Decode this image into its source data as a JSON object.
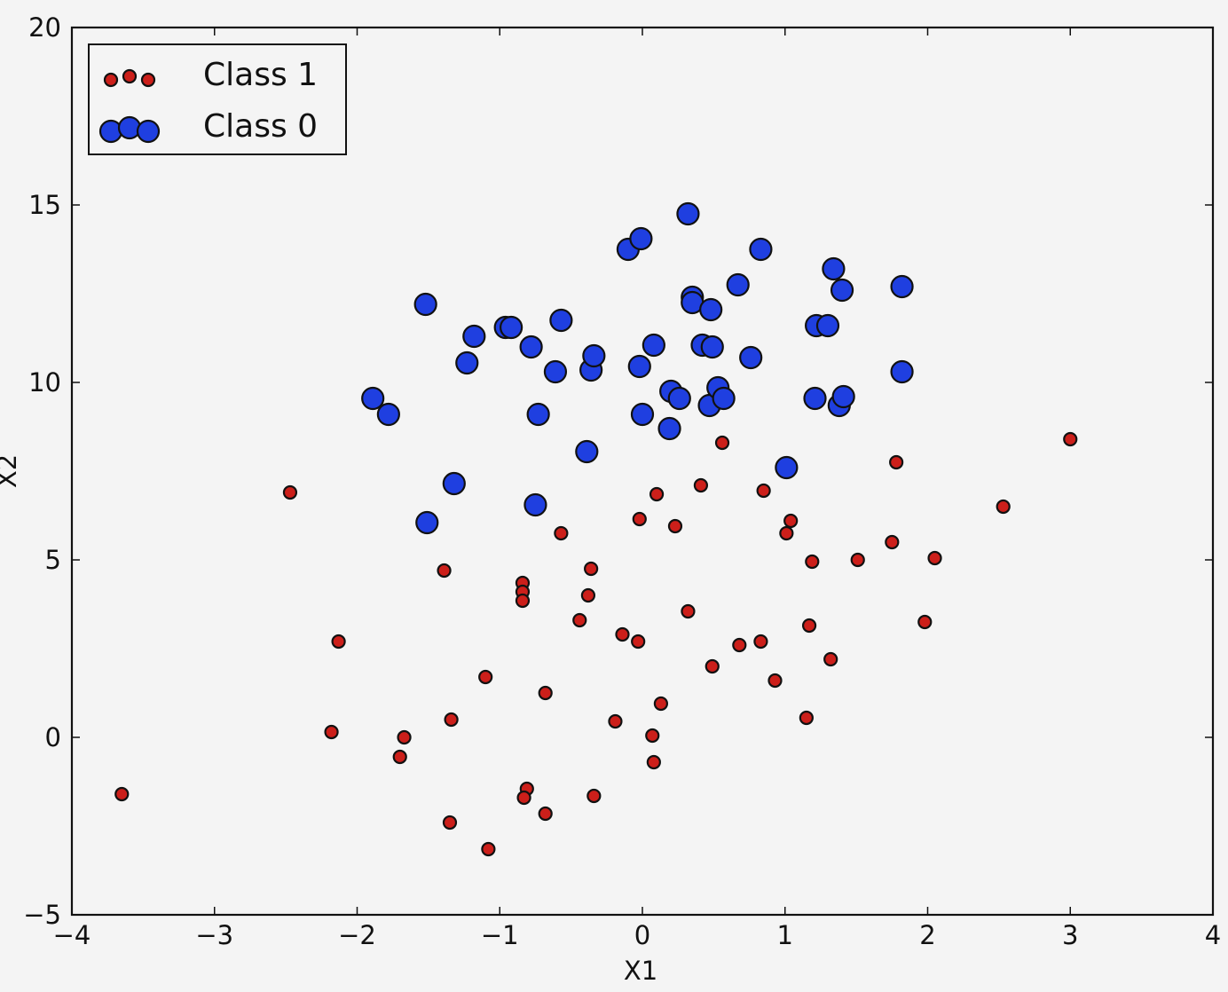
{
  "chart_data": {
    "type": "scatter",
    "xlabel": "X1",
    "ylabel": "X2",
    "xlim": [
      -4,
      4
    ],
    "ylim": [
      -5,
      20
    ],
    "xticks": [
      -4,
      -3,
      -2,
      -1,
      0,
      1,
      2,
      3,
      4
    ],
    "xtick_labels": [
      "−4",
      "−3",
      "−2",
      "−1",
      "0",
      "1",
      "2",
      "3",
      "4"
    ],
    "yticks": [
      -5,
      0,
      5,
      10,
      15,
      20
    ],
    "ytick_labels": [
      "−5",
      "0",
      "5",
      "10",
      "15",
      "20"
    ],
    "grid": false,
    "legend_position": "top-left",
    "series": [
      {
        "name": "Class 1",
        "color": "#cc1f1a",
        "marker_size": "small",
        "points": [
          [
            -3.65,
            -1.6
          ],
          [
            -2.47,
            6.9
          ],
          [
            -2.13,
            2.7
          ],
          [
            -2.18,
            0.15
          ],
          [
            -1.67,
            0.0
          ],
          [
            -1.7,
            -0.55
          ],
          [
            -1.39,
            4.7
          ],
          [
            -1.34,
            0.5
          ],
          [
            -1.35,
            -2.4
          ],
          [
            -1.1,
            1.7
          ],
          [
            -1.08,
            -3.15
          ],
          [
            -0.84,
            4.35
          ],
          [
            -0.84,
            4.1
          ],
          [
            -0.84,
            3.85
          ],
          [
            -0.81,
            -1.45
          ],
          [
            -0.83,
            -1.7
          ],
          [
            -0.68,
            1.25
          ],
          [
            -0.68,
            -2.15
          ],
          [
            -0.57,
            5.75
          ],
          [
            -0.44,
            3.3
          ],
          [
            -0.38,
            4.0
          ],
          [
            -0.36,
            4.75
          ],
          [
            -0.34,
            -1.65
          ],
          [
            -0.19,
            0.45
          ],
          [
            -0.14,
            2.9
          ],
          [
            -0.03,
            2.7
          ],
          [
            -0.02,
            6.15
          ],
          [
            0.07,
            0.05
          ],
          [
            0.08,
            -0.7
          ],
          [
            0.1,
            6.85
          ],
          [
            0.13,
            0.95
          ],
          [
            0.23,
            5.95
          ],
          [
            0.32,
            3.55
          ],
          [
            0.41,
            7.1
          ],
          [
            0.49,
            2.0
          ],
          [
            0.56,
            8.3
          ],
          [
            0.68,
            2.6
          ],
          [
            0.83,
            2.7
          ],
          [
            0.85,
            6.95
          ],
          [
            0.93,
            1.6
          ],
          [
            1.01,
            5.75
          ],
          [
            1.04,
            6.1
          ],
          [
            1.15,
            0.55
          ],
          [
            1.17,
            3.15
          ],
          [
            1.19,
            4.95
          ],
          [
            1.32,
            2.2
          ],
          [
            1.51,
            5.0
          ],
          [
            1.75,
            5.5
          ],
          [
            1.78,
            7.75
          ],
          [
            1.98,
            3.25
          ],
          [
            2.05,
            5.05
          ],
          [
            2.53,
            6.5
          ],
          [
            3.0,
            8.4
          ]
        ]
      },
      {
        "name": "Class 0",
        "color": "#1f3fe0",
        "marker_size": "large",
        "points": [
          [
            -1.89,
            9.55
          ],
          [
            -1.78,
            9.1
          ],
          [
            -1.51,
            6.05
          ],
          [
            -1.52,
            12.2
          ],
          [
            -1.32,
            7.15
          ],
          [
            -1.23,
            10.55
          ],
          [
            -1.18,
            11.3
          ],
          [
            -0.96,
            11.55
          ],
          [
            -0.92,
            11.55
          ],
          [
            -0.78,
            11.0
          ],
          [
            -0.73,
            9.1
          ],
          [
            -0.75,
            6.55
          ],
          [
            -0.61,
            10.3
          ],
          [
            -0.57,
            11.75
          ],
          [
            -0.39,
            8.05
          ],
          [
            -0.36,
            10.35
          ],
          [
            -0.34,
            10.75
          ],
          [
            -0.1,
            13.75
          ],
          [
            -0.01,
            14.05
          ],
          [
            -0.02,
            10.45
          ],
          [
            0.0,
            9.1
          ],
          [
            0.08,
            11.05
          ],
          [
            0.19,
            8.7
          ],
          [
            0.2,
            9.75
          ],
          [
            0.26,
            9.55
          ],
          [
            0.32,
            14.75
          ],
          [
            0.35,
            12.4
          ],
          [
            0.35,
            12.25
          ],
          [
            0.42,
            11.05
          ],
          [
            0.47,
            9.35
          ],
          [
            0.48,
            12.05
          ],
          [
            0.49,
            11.0
          ],
          [
            0.53,
            9.85
          ],
          [
            0.57,
            9.55
          ],
          [
            0.67,
            12.75
          ],
          [
            0.76,
            10.7
          ],
          [
            0.83,
            13.75
          ],
          [
            1.01,
            7.6
          ],
          [
            1.21,
            9.55
          ],
          [
            1.22,
            11.6
          ],
          [
            1.3,
            11.6
          ],
          [
            1.34,
            13.2
          ],
          [
            1.38,
            9.35
          ],
          [
            1.4,
            12.6
          ],
          [
            1.41,
            9.6
          ],
          [
            1.82,
            12.7
          ],
          [
            1.82,
            10.3
          ]
        ]
      }
    ]
  }
}
